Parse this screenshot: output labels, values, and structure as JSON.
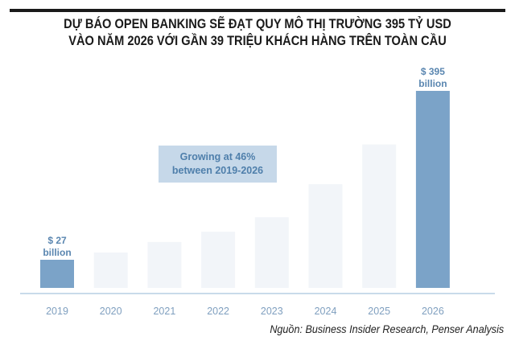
{
  "chart_data": {
    "type": "bar",
    "title": "DỰ BÁO OPEN BANKING SẼ ĐẠT QUY MÔ THỊ TRƯỜNG 395 TỶ USD VÀO NĂM 2026 VỚI GẦN 39 TRIỆU KHÁCH HÀNG TRÊN TOÀN CẦU",
    "title_lines": [
      "DỰ BÁO OPEN BANKING SẼ ĐẠT QUY MÔ THỊ TRƯỜNG 395 TỶ USD",
      "VÀO NĂM 2026 VỚI GẦN 39 TRIỆU KHÁCH HÀNG TRÊN TOÀN CẦU"
    ],
    "categories": [
      "2019",
      "2020",
      "2021",
      "2022",
      "2023",
      "2024",
      "2025",
      "2026"
    ],
    "values": [
      27,
      37,
      53,
      70,
      96,
      163,
      255,
      395
    ],
    "unit": "billion USD",
    "data_labels": [
      {
        "category": "2019",
        "line1": "$ 27",
        "line2": "billion"
      },
      {
        "category": "2026",
        "line1": "$ 395",
        "line2": "billion"
      }
    ],
    "annotation": {
      "line1": "Growing at 46%",
      "line2": "between 2019-2026"
    },
    "highlight_color": "#7ba3c8",
    "bar_color": "#f2f5f9",
    "axis_color": "#c9dbea",
    "label_color": "#5a86b0",
    "xlabel": "",
    "ylabel": "",
    "grid": false,
    "source": "Nguồn: Business Insider Research, Penser Analysis"
  }
}
